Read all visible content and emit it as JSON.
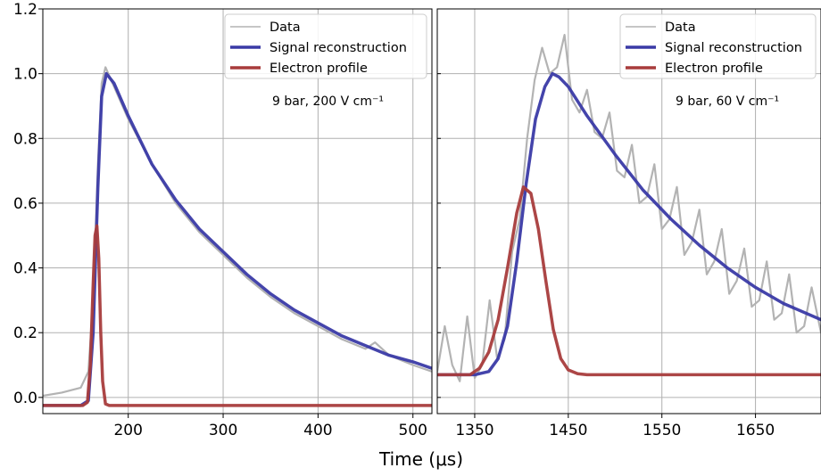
{
  "chart_data": [
    {
      "type": "line",
      "panel": "left",
      "xlabel": "Time (μs)",
      "ylabel": "",
      "xlim": [
        110,
        520
      ],
      "ylim": [
        -0.05,
        1.2
      ],
      "x_ticks": [
        200,
        300,
        400,
        500
      ],
      "y_ticks": [
        0.0,
        0.2,
        0.4,
        0.6,
        0.8,
        1.0,
        1.2
      ],
      "y_tick_labels": [
        "0.0",
        "0.2",
        "0.4",
        "0.6",
        "0.8",
        "1.0",
        "1.2"
      ],
      "grid": true,
      "legend_position": "top-right",
      "annotation": "9 bar, 200 V cm⁻¹",
      "series": [
        {
          "name": "Data",
          "color": "#b3b3b3",
          "x": [
            110,
            130,
            150,
            158,
            163,
            168,
            172,
            176,
            185,
            200,
            225,
            250,
            275,
            300,
            325,
            350,
            375,
            400,
            425,
            450,
            460,
            475,
            500,
            520
          ],
          "y": [
            0.005,
            0.015,
            0.03,
            0.08,
            0.3,
            0.72,
            0.97,
            1.02,
            0.96,
            0.86,
            0.72,
            0.6,
            0.51,
            0.44,
            0.37,
            0.31,
            0.26,
            0.22,
            0.18,
            0.15,
            0.17,
            0.13,
            0.1,
            0.08
          ]
        },
        {
          "name": "Signal reconstruction",
          "color": "#3a3aa6",
          "x": [
            110,
            150,
            158,
            163,
            168,
            172,
            177,
            185,
            200,
            225,
            250,
            275,
            300,
            325,
            350,
            375,
            400,
            425,
            450,
            475,
            500,
            520
          ],
          "y": [
            -0.025,
            -0.025,
            -0.01,
            0.2,
            0.65,
            0.93,
            1.0,
            0.97,
            0.87,
            0.72,
            0.61,
            0.52,
            0.45,
            0.38,
            0.32,
            0.27,
            0.23,
            0.19,
            0.16,
            0.13,
            0.11,
            0.09
          ]
        },
        {
          "name": "Electron profile",
          "color": "#a83c3c",
          "x": [
            110,
            152,
            157,
            160,
            163,
            165,
            167,
            169,
            171,
            173,
            176,
            180,
            520
          ],
          "y": [
            -0.025,
            -0.025,
            -0.015,
            0.1,
            0.35,
            0.5,
            0.53,
            0.43,
            0.2,
            0.05,
            -0.02,
            -0.025,
            -0.025
          ]
        }
      ]
    },
    {
      "type": "line",
      "panel": "right",
      "xlabel": "Time (μs)",
      "ylabel": "",
      "xlim": [
        1310,
        1720
      ],
      "ylim": [
        -0.05,
        1.2
      ],
      "x_ticks": [
        1350,
        1450,
        1550,
        1650
      ],
      "grid": true,
      "legend_position": "top-right",
      "annotation": "9 bar, 60 V cm⁻¹",
      "series": [
        {
          "name": "Data",
          "color": "#b3b3b3",
          "x": [
            1310,
            1318,
            1326,
            1334,
            1342,
            1350,
            1358,
            1366,
            1374,
            1382,
            1390,
            1398,
            1406,
            1414,
            1422,
            1430,
            1438,
            1446,
            1454,
            1462,
            1470,
            1478,
            1486,
            1494,
            1502,
            1510,
            1518,
            1526,
            1534,
            1542,
            1550,
            1558,
            1566,
            1574,
            1582,
            1590,
            1598,
            1606,
            1614,
            1622,
            1630,
            1638,
            1646,
            1654,
            1662,
            1670,
            1678,
            1686,
            1694,
            1702,
            1710,
            1720
          ],
          "y": [
            0.08,
            0.22,
            0.1,
            0.05,
            0.25,
            0.06,
            0.1,
            0.3,
            0.12,
            0.18,
            0.45,
            0.55,
            0.8,
            0.98,
            1.08,
            1.0,
            1.02,
            1.12,
            0.92,
            0.88,
            0.95,
            0.82,
            0.8,
            0.88,
            0.7,
            0.68,
            0.78,
            0.6,
            0.62,
            0.72,
            0.52,
            0.55,
            0.65,
            0.44,
            0.48,
            0.58,
            0.38,
            0.42,
            0.52,
            0.32,
            0.36,
            0.46,
            0.28,
            0.3,
            0.42,
            0.24,
            0.26,
            0.38,
            0.2,
            0.22,
            0.34,
            0.2
          ]
        },
        {
          "name": "Signal reconstruction",
          "color": "#3a3aa6",
          "x": [
            1310,
            1350,
            1365,
            1375,
            1385,
            1395,
            1405,
            1415,
            1425,
            1433,
            1440,
            1450,
            1470,
            1500,
            1530,
            1560,
            1590,
            1620,
            1650,
            1680,
            1720
          ],
          "y": [
            0.07,
            0.07,
            0.08,
            0.12,
            0.22,
            0.42,
            0.66,
            0.86,
            0.96,
            1.0,
            0.99,
            0.96,
            0.87,
            0.75,
            0.64,
            0.55,
            0.47,
            0.4,
            0.34,
            0.29,
            0.24
          ]
        },
        {
          "name": "Electron profile",
          "color": "#a83c3c",
          "x": [
            1310,
            1345,
            1355,
            1365,
            1375,
            1385,
            1395,
            1402,
            1410,
            1418,
            1426,
            1434,
            1442,
            1450,
            1460,
            1470,
            1480,
            1720
          ],
          "y": [
            0.07,
            0.07,
            0.09,
            0.14,
            0.24,
            0.4,
            0.57,
            0.65,
            0.63,
            0.52,
            0.36,
            0.21,
            0.12,
            0.085,
            0.073,
            0.07,
            0.07,
            0.07
          ]
        }
      ]
    }
  ]
}
